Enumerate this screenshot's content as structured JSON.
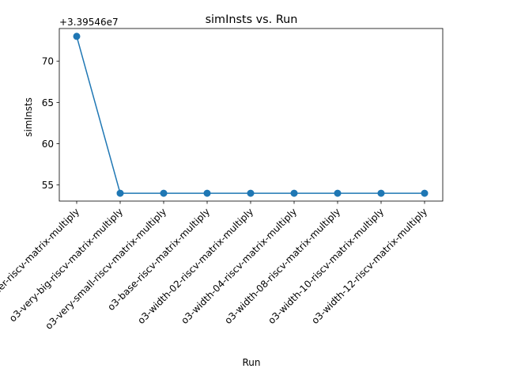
{
  "chart_data": {
    "type": "line",
    "title": "simInsts vs. Run",
    "xlabel": "Run",
    "ylabel": "simInsts",
    "offset_text": "+3.39546e7",
    "categories": [
      "inorder-riscv-matrix-multiply",
      "o3-very-big-riscv-matrix-multiply",
      "o3-very-small-riscv-matrix-multiply",
      "o3-base-riscv-matrix-multiply",
      "o3-width-02-riscv-matrix-multiply",
      "o3-width-04-riscv-matrix-multiply",
      "o3-width-08-riscv-matrix-multiply",
      "o3-width-10-riscv-matrix-multiply",
      "o3-width-12-riscv-matrix-multiply"
    ],
    "series": [
      {
        "values": [
          73,
          54,
          54,
          54,
          54,
          54,
          54,
          54,
          54
        ],
        "color": "#1f77b4",
        "marker": "circle"
      }
    ],
    "yticks": [
      55,
      60,
      65,
      70
    ],
    "ylim": [
      53.05,
      73.95
    ],
    "grid": false,
    "legend": "none"
  }
}
